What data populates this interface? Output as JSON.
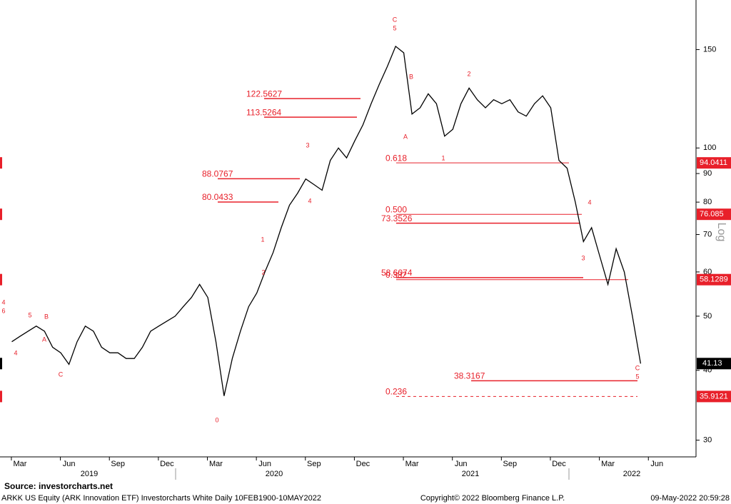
{
  "chart_data": {
    "type": "line",
    "log_scale": true,
    "categories": [
      null,
      "Mar",
      null,
      null,
      null,
      null,
      null,
      "Jun",
      null,
      null,
      null,
      null,
      null,
      "Sep",
      null,
      null,
      null,
      null,
      null,
      "Dec",
      null,
      null,
      null,
      null,
      null,
      "Mar",
      null,
      null,
      null,
      null,
      null,
      "Jun",
      null,
      null,
      null,
      null,
      null,
      "Sep",
      null,
      null,
      null,
      null,
      null,
      "Dec",
      null,
      null,
      null,
      null,
      null,
      "Mar",
      null,
      null,
      null,
      null,
      null,
      "Jun",
      null,
      null,
      null,
      null,
      null,
      "Sep",
      null,
      null,
      null,
      null,
      null,
      "Dec",
      null,
      null,
      null,
      null,
      null,
      "Mar",
      null,
      null,
      null,
      null,
      null,
      "Jun",
      null
    ],
    "series": [
      {
        "name": "ARKK US Equity",
        "color": "#000000",
        "values": [
          45,
          46,
          47,
          48,
          47,
          44,
          43,
          41,
          45,
          48,
          47,
          44,
          43,
          43,
          42,
          42,
          44,
          47,
          48,
          49,
          50,
          52,
          54,
          57,
          54,
          45,
          36,
          42,
          47,
          52,
          55,
          60,
          65,
          72,
          79,
          83,
          88,
          86,
          84,
          95,
          100,
          96,
          103,
          110,
          120,
          130,
          140,
          152,
          148,
          115,
          118,
          125,
          120,
          105,
          108,
          120,
          128,
          122,
          118,
          122,
          120,
          122,
          116,
          114,
          120,
          124,
          118,
          95,
          92,
          80,
          68,
          72,
          64,
          57,
          66,
          60,
          50,
          41.13,
          null,
          null,
          null
        ]
      }
    ],
    "year_labels": [
      "2019",
      "2020",
      "2021",
      "2022"
    ],
    "ylim": [
      28,
      184
    ],
    "yticks": [
      30,
      40,
      50,
      60,
      70,
      80,
      90,
      100,
      150
    ],
    "y_axis_label": "Log",
    "levels": [
      122.5627,
      113.5264,
      88.0767,
      80.0433,
      73.3526,
      58.6074,
      38.3167
    ],
    "level_color": "#e8202a",
    "fib_levels": [
      {
        "value": 94.0411,
        "label": "0.618"
      },
      {
        "value": 76.085,
        "label": "0.500"
      },
      {
        "value": 58.1289,
        "label": "0.382"
      },
      {
        "value": 35.9121,
        "label": "0.236"
      }
    ],
    "last_price": 41.13,
    "wave_labels": [
      "C",
      "5",
      "B",
      "A",
      "1",
      "2",
      "3",
      "4",
      "1",
      "2",
      "0",
      "C",
      "B",
      "A",
      "3",
      "4",
      "C",
      "5",
      "4",
      "6",
      "5",
      "4"
    ],
    "source": "Source:  investorcharts.net",
    "footer_left": "ARKK US Equity (ARK Innovation ETF) Investorcharts White  Daily 10FEB1900-10MAY2022",
    "footer_center": "Copyright© 2022 Bloomberg Finance L.P.",
    "footer_right": "09-May-2022 20:59:28"
  }
}
